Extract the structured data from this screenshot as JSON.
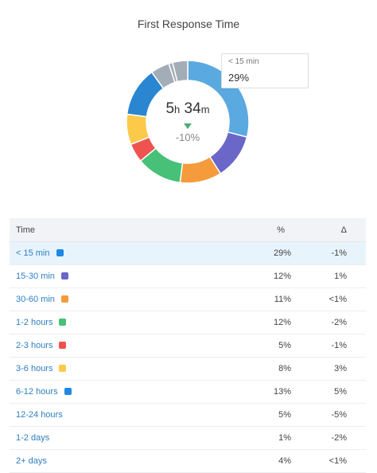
{
  "title": "First Response Time",
  "center": {
    "hours": "5",
    "hours_unit": "h",
    "minutes": "34",
    "minutes_unit": "m",
    "delta": "-10%"
  },
  "tooltip": {
    "label": "< 15 min",
    "value": "29%"
  },
  "table": {
    "headers": [
      "Time",
      "%",
      "Δ"
    ],
    "rows": [
      {
        "label": "< 15 min",
        "pct": "29%",
        "delta": "-1%",
        "color": "#5aa9e0",
        "swatch": "#1e88e5",
        "highlight": true
      },
      {
        "label": "15-30 min",
        "pct": "12%",
        "delta": "1%",
        "color": "#6a67c9",
        "swatch": "#6a67c9"
      },
      {
        "label": "30-60 min",
        "pct": "11%",
        "delta": "<1%",
        "color": "#f59b3c",
        "swatch": "#f59b3c"
      },
      {
        "label": "1-2 hours",
        "pct": "12%",
        "delta": "-2%",
        "color": "#47c178",
        "swatch": "#47c178"
      },
      {
        "label": "2-3 hours",
        "pct": "5%",
        "delta": "-1%",
        "color": "#ef5350",
        "swatch": "#ef5350"
      },
      {
        "label": "3-6 hours",
        "pct": "8%",
        "delta": "3%",
        "color": "#fdc94a",
        "swatch": "#fdc94a"
      },
      {
        "label": "6-12 hours",
        "pct": "13%",
        "delta": "5%",
        "color": "#2a86d1",
        "swatch": "#1e88e5"
      },
      {
        "label": "12-24 hours",
        "pct": "5%",
        "delta": "-5%",
        "color": "#a3adb8"
      },
      {
        "label": "1-2 days",
        "pct": "1%",
        "delta": "-2%",
        "color": "#a3adb8"
      },
      {
        "label": "2+ days",
        "pct": "4%",
        "delta": "<1%",
        "color": "#a3adb8"
      }
    ]
  },
  "chart_data": {
    "type": "pie",
    "categories": [
      "< 15 min",
      "15-30 min",
      "30-60 min",
      "1-2 hours",
      "2-3 hours",
      "3-6 hours",
      "6-12 hours",
      "12-24 hours",
      "1-2 days",
      "2+ days"
    ],
    "values": [
      29,
      12,
      11,
      12,
      5,
      8,
      13,
      5,
      1,
      4
    ],
    "donut": true,
    "title": "First Response Time"
  }
}
